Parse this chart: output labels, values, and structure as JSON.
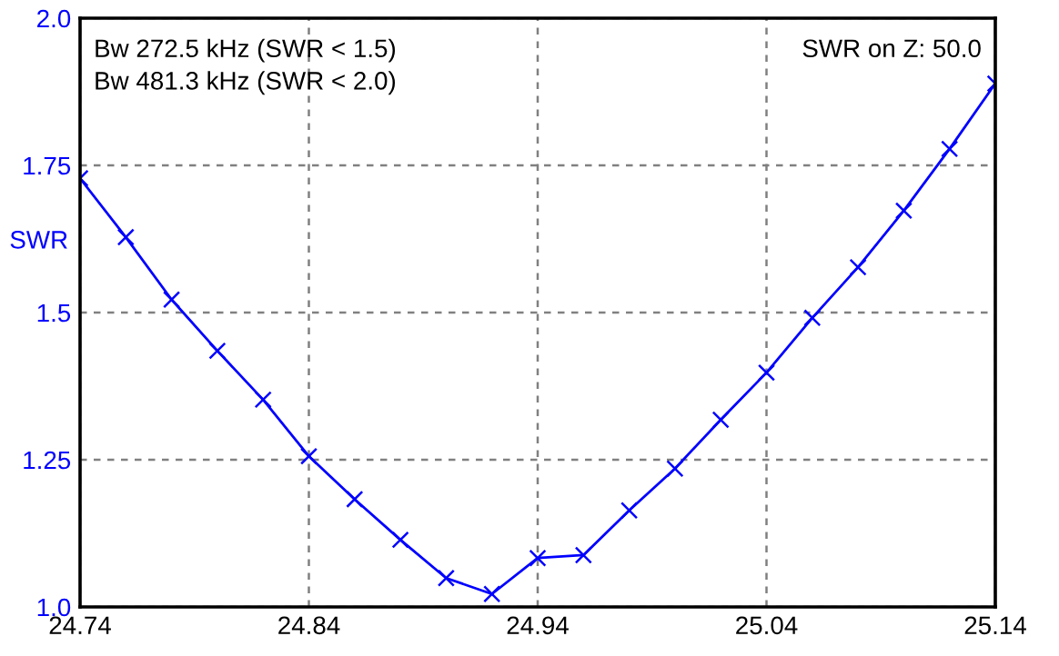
{
  "chart_data": {
    "type": "line",
    "ylabel": "SWR",
    "x": [
      24.74,
      24.76,
      24.78,
      24.8,
      24.82,
      24.84,
      24.86,
      24.88,
      24.9,
      24.92,
      24.94,
      24.96,
      24.98,
      25.0,
      25.02,
      25.04,
      25.06,
      25.08,
      25.1,
      25.12,
      25.14
    ],
    "series": [
      {
        "color": "#0000ff",
        "values": [
          1.728,
          1.628,
          1.522,
          1.435,
          1.352,
          1.256,
          1.183,
          1.114,
          1.049,
          1.022,
          1.083,
          1.088,
          1.164,
          1.235,
          1.318,
          1.398,
          1.491,
          1.577,
          1.673,
          1.778,
          1.889
        ]
      }
    ],
    "marker": "cross",
    "line_style": "solid",
    "grid": true,
    "xlim": [
      24.74,
      25.14
    ],
    "xticks": [
      24.74,
      24.84,
      24.94,
      25.04,
      25.14
    ],
    "ylim": [
      1.0,
      2.0
    ],
    "yticks": [
      {
        "value": 1.0,
        "label": "1.0"
      },
      1.25,
      1.5,
      1.75,
      {
        "value": 2.0,
        "label": "2.0"
      }
    ],
    "annotations": [
      "Bw 272.5 kHz (SWR < 1.5)",
      "Bw 481.3 kHz (SWR < 2.0)",
      "SWR on Z: 50.0"
    ]
  }
}
